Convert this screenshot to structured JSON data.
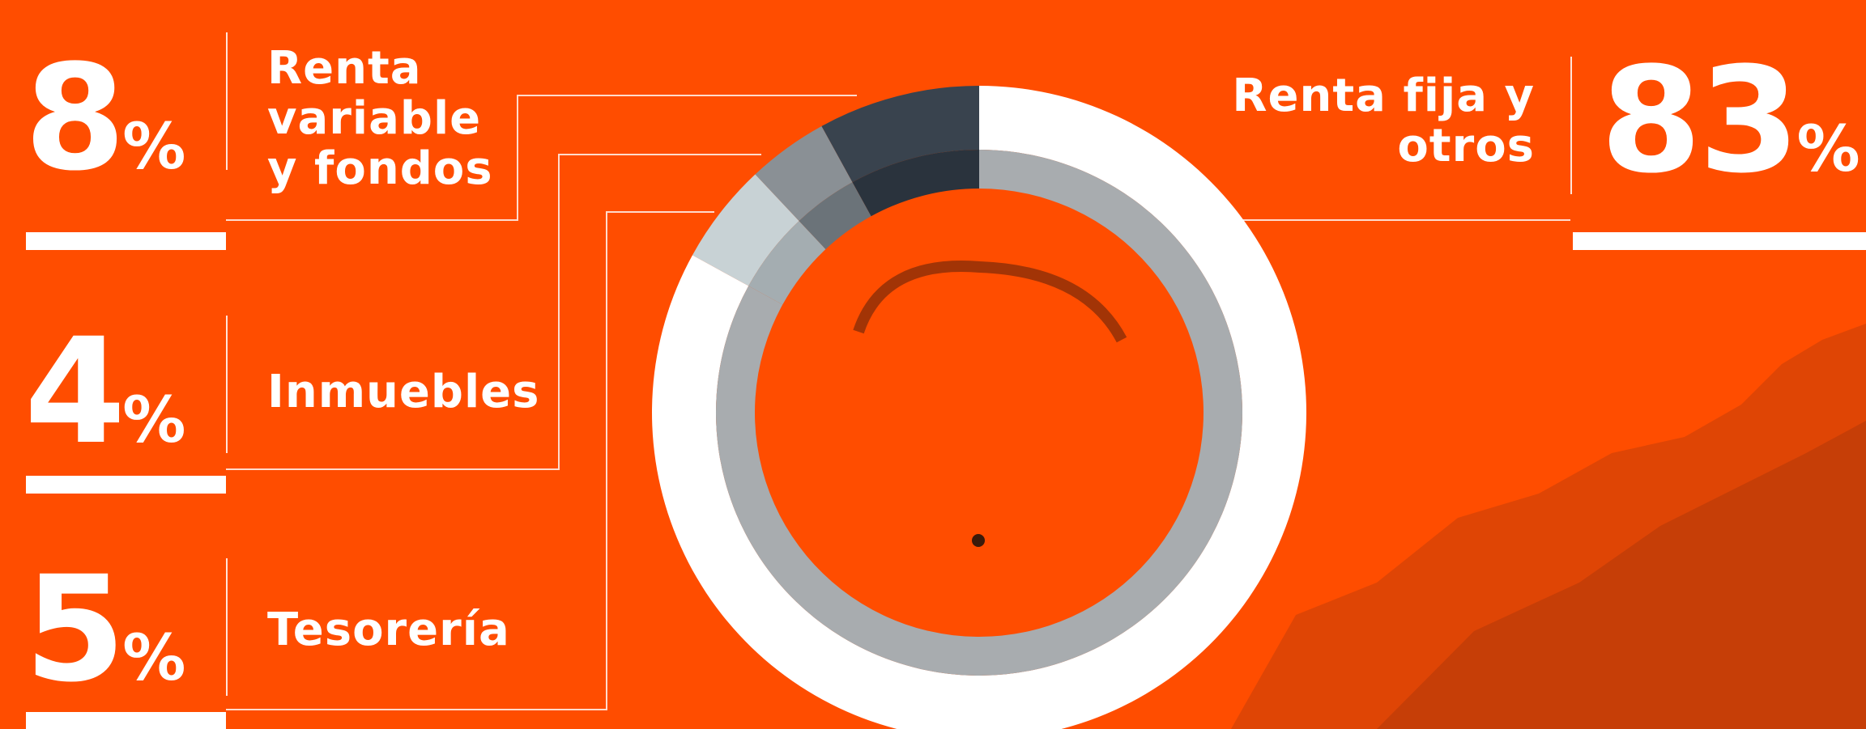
{
  "chart_data": {
    "type": "donut",
    "categories": [
      "Renta\nvariable\ny fondos",
      "Inmuebles",
      "Tesorería",
      "Renta fija y\notros"
    ],
    "values": [
      8,
      4,
      5,
      83
    ],
    "value_labels": [
      "8%",
      "4%",
      "5%",
      "83%"
    ],
    "colors": [
      "#39434e",
      "#8a9095",
      "#c8d2d5",
      "#ffffff"
    ],
    "inner_colors": [
      "#2a333d",
      "#6b7379",
      "#a4adb1",
      "#a8acaf"
    ],
    "background": "#ff4d00"
  }
}
